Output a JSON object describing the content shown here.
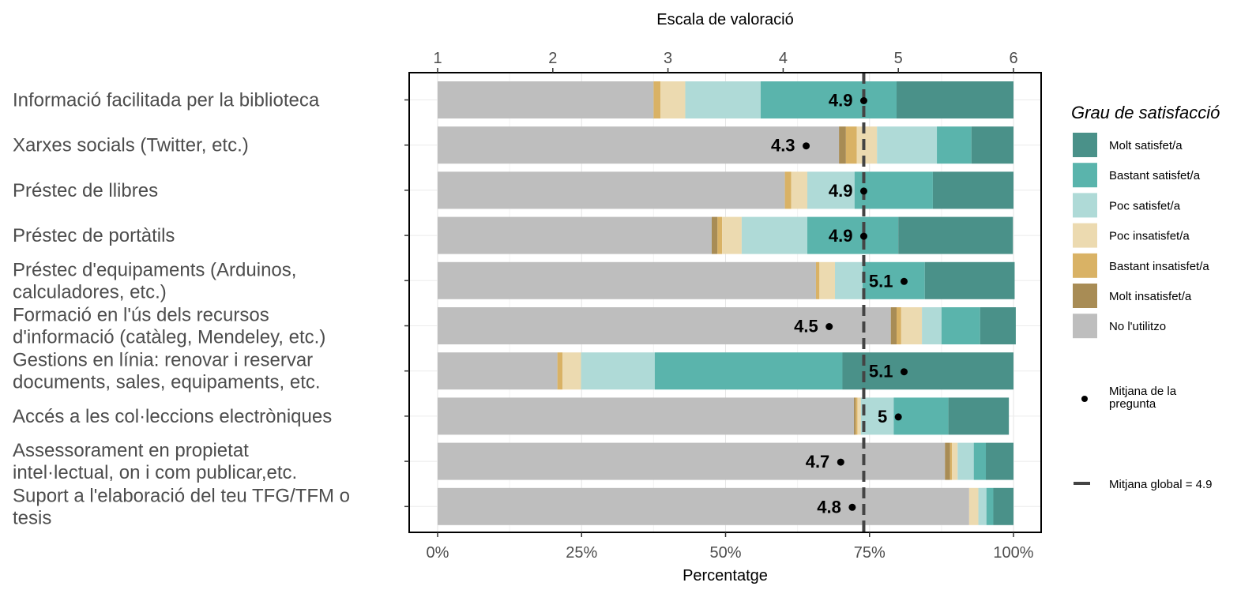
{
  "chart_data": {
    "type": "bar",
    "orientation": "horizontal",
    "stacked": true,
    "xlabel": "Percentatge",
    "x2label": "Escala de valoració",
    "xlim": [
      0,
      100
    ],
    "x2lim": [
      1,
      6
    ],
    "xticks": [
      "0%",
      "25%",
      "50%",
      "75%",
      "100%"
    ],
    "x2ticks": [
      "1",
      "2",
      "3",
      "4",
      "5",
      "6"
    ],
    "categories": [
      [
        "Informació facilitada per la biblioteca"
      ],
      [
        "Xarxes socials (Twitter, etc.)"
      ],
      [
        "Préstec de llibres"
      ],
      [
        "Préstec de portàtils"
      ],
      [
        "Préstec d'equipaments (Arduinos,",
        "calculadores, etc.)"
      ],
      [
        "Formació en l'ús dels recursos",
        "d'informació (catàleg, Mendeley, etc.)"
      ],
      [
        "Gestions en línia: renovar i reservar",
        "documents, sales, equipaments, etc."
      ],
      [
        "Accés a les col·leccions electròniques"
      ],
      [
        "Assessorament en propietat",
        "intel·lectual, on i com publicar,etc."
      ],
      [
        "Suport a l'elaboració del teu TFG/TFM o",
        "tesis"
      ]
    ],
    "series": [
      {
        "name": "No l'utilitzo",
        "color": "#bebebe",
        "values": [
          37.5,
          69.7,
          60.3,
          47.6,
          65.7,
          78.7,
          20.8,
          72.3,
          88.1,
          92.3
        ]
      },
      {
        "name": "Molt insatisfet/a",
        "color": "#a88c55",
        "values": [
          0,
          1.2,
          0,
          1.0,
          0,
          1.0,
          0,
          0.3,
          0.9,
          0
        ]
      },
      {
        "name": "Bastant insatisfet/a",
        "color": "#d9b265",
        "values": [
          1.2,
          1.9,
          1.1,
          0.8,
          0.6,
          0.8,
          0.9,
          0.3,
          0.3,
          0
        ]
      },
      {
        "name": "Poc insatisfet/a",
        "color": "#ecdab0",
        "values": [
          4.3,
          3.5,
          2.8,
          3.4,
          2.7,
          3.6,
          3.2,
          0.6,
          1.0,
          1.6
        ]
      },
      {
        "name": "Poc satisfet/a",
        "color": "#afdad7",
        "values": [
          13.1,
          10.4,
          8.2,
          11.4,
          4.8,
          3.4,
          12.8,
          5.7,
          2.8,
          1.4
        ]
      },
      {
        "name": "Bastant satisfet/a",
        "color": "#5ab4ac",
        "values": [
          23.6,
          6.0,
          13.6,
          15.8,
          10.8,
          6.7,
          32.6,
          9.5,
          2.1,
          1.2
        ]
      },
      {
        "name": "Molt satisfet/a",
        "color": "#4a9189",
        "values": [
          20.3,
          7.3,
          14.0,
          19.9,
          15.6,
          6.2,
          29.7,
          10.5,
          4.8,
          3.5
        ]
      }
    ],
    "means": [
      4.9,
      4.3,
      4.9,
      4.9,
      5.1,
      4.5,
      5.1,
      5,
      4.7,
      4.8
    ],
    "mean_labels": [
      "4.9",
      "4.3",
      "4.9",
      "4.9",
      "5.1",
      "4.5",
      "5.1",
      "5",
      "4.7",
      "4.8"
    ],
    "mean_positions": [
      4.7,
      4.2,
      4.7,
      4.7,
      5.05,
      4.4,
      5.05,
      5.0,
      4.5,
      4.6
    ],
    "global_mean": 4.7,
    "grid": true,
    "legend": {
      "title": "Grau de satisfacció",
      "position": "right",
      "order": [
        "Molt satisfet/a",
        "Bastant satisfet/a",
        "Poc satisfet/a",
        "Poc insatisfet/a",
        "Bastant insatisfet/a",
        "Molt insatisfet/a",
        "No l'utilitzo"
      ],
      "mean_point_label": [
        "Mitjana de la",
        "pregunta"
      ],
      "global_mean_label": "Mitjana global =  4.9"
    }
  }
}
